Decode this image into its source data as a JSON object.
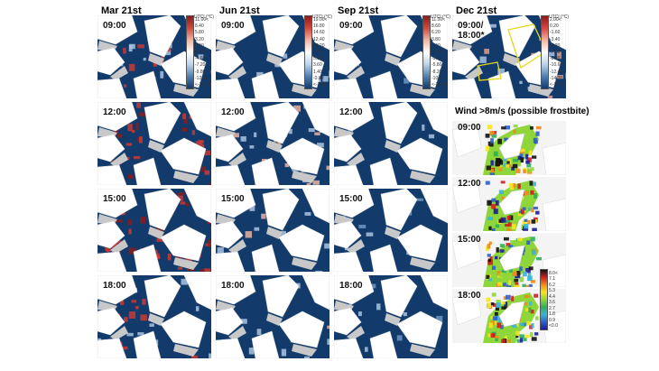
{
  "columns": [
    "Mar 21st",
    "Jun 21st",
    "Sep 21st",
    "Dec 21st"
  ],
  "rows": [
    "09:00",
    "12:00",
    "15:00",
    "18:00"
  ],
  "dec_label": "09:00/\n18:00*",
  "utci_legend": {
    "title": "UTCI (°C)",
    "ticks_a": [
      "11.00<",
      "8.40",
      "5.80",
      "3.20",
      "0.60",
      "-2.00",
      "-4.60",
      "-7.20",
      "-9.80",
      "-12.40",
      "<-15.00"
    ],
    "ticks_b": [
      "19.00<",
      "16.80",
      "14.60",
      "12.40",
      "10.20",
      "8.00",
      "5.80",
      "3.60",
      "1.40",
      "-0.80",
      "<-3.00"
    ],
    "ticks_c": [
      "11.00<",
      "8.60",
      "6.20",
      "3.80",
      "1.40",
      "-1.00",
      "-3.40",
      "-5.80",
      "-8.20",
      "-10.60",
      "<-13.00"
    ],
    "ticks_d": [
      "2.00<",
      "0.20",
      "-1.60",
      "-3.40",
      "-5.20",
      "-7.00",
      "-8.80",
      "-10.60",
      "-12.40",
      "-14.20",
      "<-16.00"
    ]
  },
  "wind_title": "Wind >8m/s (possible frostbite)",
  "wind_rows": [
    "09:00",
    "12:00",
    "15:00",
    "18:00"
  ],
  "wind_legend": [
    "8.0<",
    "7.1",
    "6.2",
    "5.3",
    "4.4",
    "3.6",
    "2.7",
    "1.8",
    "0.9",
    "<0.0"
  ],
  "colors": {
    "cold_deep": "#123a6b",
    "cold_light": "#a9c4e0",
    "warm": "#c83a36",
    "warm_deep": "#8e1b1b",
    "building": "#ffffff",
    "shadow": "#c8c8c8"
  }
}
